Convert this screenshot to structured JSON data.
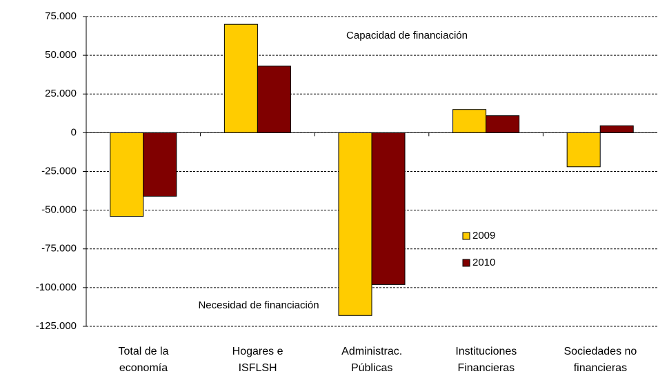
{
  "chart_data": {
    "type": "bar",
    "categories": [
      "Total de la\neconomía",
      "Hogares e\nISFLSH",
      "Administrac.\nPúblicas",
      "Instituciones\nFinancieras",
      "Sociedades no\nfinancieras"
    ],
    "series": [
      {
        "name": "2009",
        "color": "#ffcc00",
        "values": [
          -54000,
          70000,
          -118000,
          15000,
          -22000
        ]
      },
      {
        "name": "2010",
        "color": "#800000",
        "values": [
          -41000,
          43000,
          -98000,
          11000,
          4500
        ]
      }
    ],
    "annotations": [
      "Capacidad de financiación",
      "Necesidad de financiación"
    ],
    "ylim": [
      -125000,
      75000
    ],
    "yticks": [
      {
        "value": -125000,
        "label": "-125.000"
      },
      {
        "value": -100000,
        "label": "-100.000"
      },
      {
        "value": -75000,
        "label": "-75.000"
      },
      {
        "value": -50000,
        "label": "-50.000"
      },
      {
        "value": -25000,
        "label": "-25.000"
      },
      0,
      {
        "value": 25000,
        "label": "25.000"
      },
      {
        "value": 50000,
        "label": "50.000"
      },
      {
        "value": 75000,
        "label": "75.000"
      }
    ],
    "grid": true
  }
}
